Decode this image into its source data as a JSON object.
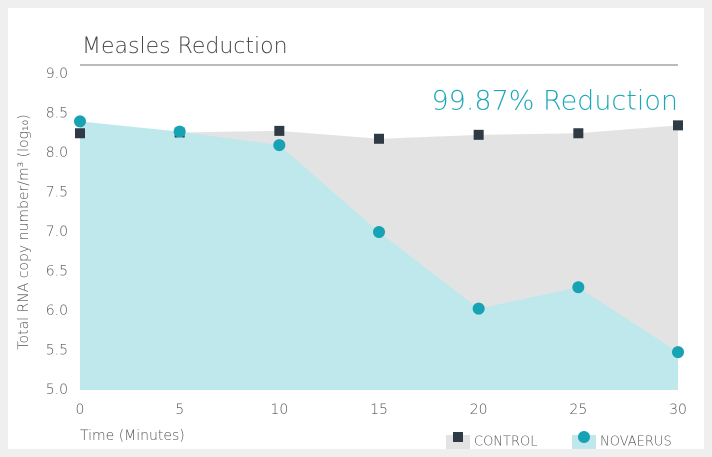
{
  "chart_data": {
    "type": "area",
    "title": "Measles Reduction",
    "annotation": "99.87% Reduction",
    "x_label": "Time (Minutes)",
    "y_label": "Total RNA copy number/m³ (log₁₀)",
    "x": [
      0,
      5,
      10,
      15,
      20,
      25,
      30
    ],
    "series": [
      {
        "name": "CONTROL",
        "color": "#2f3a45",
        "area_color": "#e3e3e3",
        "marker": "square",
        "values": [
          8.25,
          8.26,
          8.28,
          8.18,
          8.23,
          8.25,
          8.35
        ]
      },
      {
        "name": "NOVAERUS",
        "color": "#17a3b4",
        "area_color": "#bfe8ec",
        "marker": "circle",
        "values": [
          8.4,
          8.27,
          8.1,
          7.0,
          6.03,
          6.3,
          5.48
        ]
      }
    ],
    "xlim": [
      0,
      30
    ],
    "xticks": [
      0,
      5,
      10,
      15,
      20,
      25,
      30
    ],
    "ylim": [
      5,
      9
    ],
    "yticks": [
      {
        "value": 5,
        "label": "5.0"
      },
      5.5,
      {
        "value": 6,
        "label": "6.0"
      },
      6.5,
      {
        "value": 7,
        "label": "7.0"
      },
      7.5,
      {
        "value": 8,
        "label": "8.0"
      },
      8.5,
      {
        "value": 9,
        "label": "9.0"
      }
    ],
    "legend": "bottom-right",
    "grid": false
  }
}
